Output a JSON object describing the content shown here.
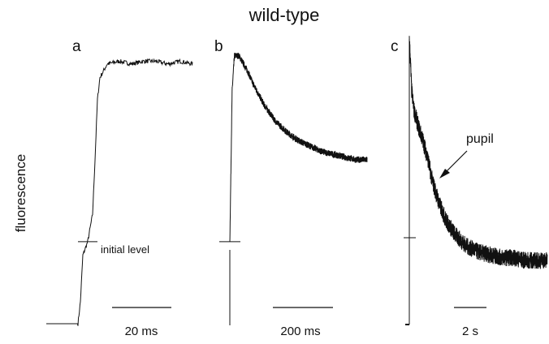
{
  "chart_data": {
    "type": "line",
    "title": "wild-type",
    "ylabel": "fluorescence",
    "grid": false,
    "legend": "none",
    "panels": [
      {
        "label": "a",
        "scale_bar": "20 ms",
        "x_unit": "ms",
        "x_range": [
          0,
          60
        ],
        "y_range": [
          0,
          1
        ],
        "initial_level": 0.3,
        "annotation": "initial level",
        "series": [
          {
            "x": [
              0,
              13,
              14,
              15,
              17,
              19,
              20,
              21,
              22,
              25,
              30,
              35,
              40,
              45,
              50,
              55,
              60
            ],
            "y": [
              0.0,
              0.0,
              0.08,
              0.25,
              0.3,
              0.4,
              0.6,
              0.82,
              0.9,
              0.95,
              0.96,
              0.95,
              0.96,
              0.96,
              0.95,
              0.96,
              0.95
            ],
            "noise": 0.008
          }
        ]
      },
      {
        "label": "b",
        "scale_bar": "200 ms",
        "x_unit": "ms",
        "x_range": [
          0,
          600
        ],
        "y_range": [
          0,
          1
        ],
        "initial_level": 0.3,
        "series": [
          {
            "x": [
              0,
              10,
              20,
              40,
              60,
              80,
              100,
              150,
              200,
              250,
              300,
              350,
              400,
              450,
              500,
              550,
              600
            ],
            "y": [
              0.3,
              0.85,
              0.98,
              0.98,
              0.95,
              0.92,
              0.88,
              0.8,
              0.74,
              0.7,
              0.67,
              0.65,
              0.63,
              0.62,
              0.61,
              0.6,
              0.6
            ],
            "noise": 0.012
          }
        ]
      },
      {
        "label": "c",
        "scale_bar": "2 s",
        "x_unit": "s",
        "x_range": [
          0,
          6
        ],
        "y_range": [
          0,
          1
        ],
        "initial_level": 0.3,
        "annotation": "pupil",
        "series": [
          {
            "x": [
              0,
              0.05,
              0.1,
              0.2,
              0.4,
              0.6,
              0.8,
              1.0,
              1.3,
              1.6,
              2.0,
              2.5,
              3.0,
              3.5,
              4.0,
              4.5,
              5.0,
              5.5,
              6.0
            ],
            "y": [
              1.0,
              0.92,
              0.82,
              0.75,
              0.69,
              0.64,
              0.58,
              0.5,
              0.42,
              0.36,
              0.31,
              0.27,
              0.25,
              0.24,
              0.23,
              0.23,
              0.22,
              0.22,
              0.22
            ],
            "noise": 0.03
          }
        ]
      }
    ]
  },
  "colors": {
    "ink": "#111111",
    "background": "#ffffff"
  }
}
